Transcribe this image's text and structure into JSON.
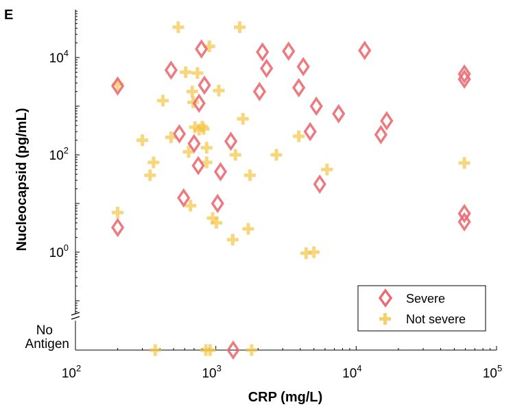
{
  "panel_label": "E",
  "chart_data": {
    "type": "scatter",
    "xlabel": "CRP (mg/L)",
    "ylabel": "Nucleocapsid (pg/mL)",
    "x_scale": "log",
    "y_scale": "log",
    "xlim": [
      100,
      100000
    ],
    "ylim": [
      0.03,
      100000
    ],
    "x_ticks": [
      {
        "value": 100,
        "base": "10",
        "exp": "2"
      },
      {
        "value": 1000,
        "base": "10",
        "exp": "3"
      },
      {
        "value": 10000,
        "base": "10",
        "exp": "4"
      },
      {
        "value": 100000,
        "base": "10",
        "exp": "5"
      }
    ],
    "y_ticks": [
      {
        "value": 1,
        "base": "10",
        "exp": "0"
      },
      {
        "value": 100,
        "base": "10",
        "exp": "2"
      },
      {
        "value": 10000,
        "base": "10",
        "exp": "4"
      }
    ],
    "no_antigen_label_line1": "No",
    "no_antigen_label_line2": "Antigen",
    "legend_position": "bottom-right",
    "grid": false,
    "series": [
      {
        "name": "Severe",
        "marker": "diamond",
        "color": "#ea6b72",
        "points": [
          {
            "x": 200,
            "y": 2600
          },
          {
            "x": 200,
            "y": 3.2
          },
          {
            "x": 480,
            "y": 5500
          },
          {
            "x": 550,
            "y": 270
          },
          {
            "x": 590,
            "y": 13
          },
          {
            "x": 700,
            "y": 170
          },
          {
            "x": 750,
            "y": 60
          },
          {
            "x": 760,
            "y": 1150
          },
          {
            "x": 790,
            "y": 15000
          },
          {
            "x": 830,
            "y": 2700
          },
          {
            "x": 1030,
            "y": 10
          },
          {
            "x": 1080,
            "y": 45
          },
          {
            "x": 1280,
            "y": 190
          },
          {
            "x": 2050,
            "y": 2000
          },
          {
            "x": 2150,
            "y": 13000
          },
          {
            "x": 2300,
            "y": 6000
          },
          {
            "x": 3300,
            "y": 13500
          },
          {
            "x": 3900,
            "y": 2400
          },
          {
            "x": 4200,
            "y": 6500
          },
          {
            "x": 4700,
            "y": 300
          },
          {
            "x": 5200,
            "y": 1000
          },
          {
            "x": 5500,
            "y": 25
          },
          {
            "x": 7500,
            "y": 700
          },
          {
            "x": 11500,
            "y": 14000
          },
          {
            "x": 15000,
            "y": 260
          },
          {
            "x": 16500,
            "y": 500
          },
          {
            "x": 59000,
            "y": 4600
          },
          {
            "x": 59000,
            "y": 3600
          },
          {
            "x": 59000,
            "y": 6.2
          },
          {
            "x": 59000,
            "y": 4.2
          }
        ],
        "no_antigen_x": [
          1330
        ]
      },
      {
        "name": "Not severe",
        "marker": "plus",
        "color": "#f5c547",
        "points": [
          {
            "x": 200,
            "y": 6.5
          },
          {
            "x": 200,
            "y": 2800
          },
          {
            "x": 300,
            "y": 200
          },
          {
            "x": 340,
            "y": 38
          },
          {
            "x": 360,
            "y": 70
          },
          {
            "x": 420,
            "y": 1300
          },
          {
            "x": 480,
            "y": 230
          },
          {
            "x": 540,
            "y": 42000
          },
          {
            "x": 610,
            "y": 5000
          },
          {
            "x": 640,
            "y": 115
          },
          {
            "x": 660,
            "y": 9
          },
          {
            "x": 680,
            "y": 2000
          },
          {
            "x": 690,
            "y": 1200
          },
          {
            "x": 710,
            "y": 370
          },
          {
            "x": 740,
            "y": 4800
          },
          {
            "x": 760,
            "y": 330
          },
          {
            "x": 800,
            "y": 380
          },
          {
            "x": 820,
            "y": 340
          },
          {
            "x": 860,
            "y": 140
          },
          {
            "x": 860,
            "y": 70
          },
          {
            "x": 900,
            "y": 17000
          },
          {
            "x": 950,
            "y": 5
          },
          {
            "x": 1010,
            "y": 4
          },
          {
            "x": 1050,
            "y": 2100
          },
          {
            "x": 1320,
            "y": 1.8
          },
          {
            "x": 1380,
            "y": 100
          },
          {
            "x": 1480,
            "y": 42000
          },
          {
            "x": 1560,
            "y": 550
          },
          {
            "x": 1700,
            "y": 3
          },
          {
            "x": 1750,
            "y": 38
          },
          {
            "x": 2700,
            "y": 100
          },
          {
            "x": 3900,
            "y": 240
          },
          {
            "x": 4400,
            "y": 0.95
          },
          {
            "x": 5000,
            "y": 1
          },
          {
            "x": 6200,
            "y": 50
          },
          {
            "x": 59000,
            "y": 68
          }
        ],
        "no_antigen_x": [
          370,
          850,
          910,
          1800
        ]
      }
    ]
  }
}
